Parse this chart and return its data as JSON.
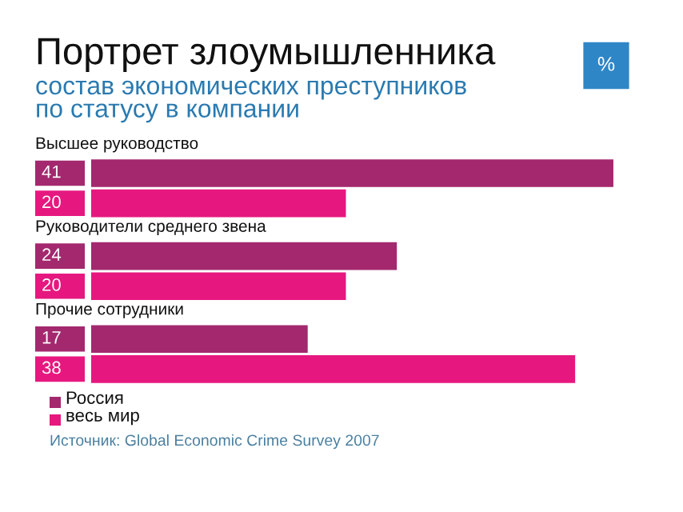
{
  "chart_data": {
    "type": "bar",
    "orientation": "horizontal",
    "title": "Портрет злоумышленника",
    "subtitle": "состав экономических преступников\nпо статусу в компании",
    "categories": [
      "Высшее руководство",
      "Руководители среднего звена",
      "Прочие сотрудники"
    ],
    "series": [
      {
        "name": "Россия",
        "color": "#a3286e",
        "values": [
          41,
          24,
          17
        ]
      },
      {
        "name": "весь мир",
        "color": "#e6187f",
        "values": [
          20,
          20,
          38
        ]
      }
    ],
    "data_labels": true,
    "legend": "bottom left",
    "annotations": [
      "%",
      "Источник: Global Economic Crime Survey 2007"
    ]
  }
}
